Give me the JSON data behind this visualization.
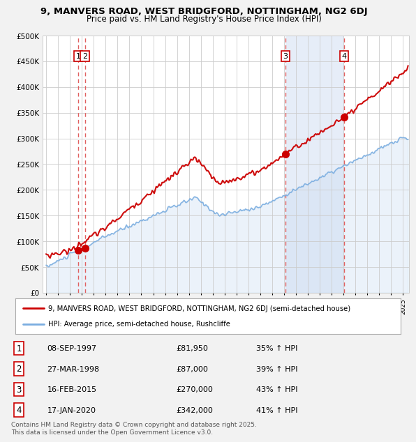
{
  "title": "9, MANVERS ROAD, WEST BRIDGFORD, NOTTINGHAM, NG2 6DJ",
  "subtitle": "Price paid vs. HM Land Registry's House Price Index (HPI)",
  "bg_color": "#f2f2f2",
  "plot_bg_color": "#ffffff",
  "purchases": [
    {
      "date_num": 1997.69,
      "price": 81950,
      "label": "1"
    },
    {
      "date_num": 1998.25,
      "price": 87000,
      "label": "2"
    },
    {
      "date_num": 2015.12,
      "price": 270000,
      "label": "3"
    },
    {
      "date_num": 2020.05,
      "price": 342000,
      "label": "4"
    }
  ],
  "table_entries": [
    [
      "1",
      "08-SEP-1997",
      "£81,950",
      "35% ↑ HPI"
    ],
    [
      "2",
      "27-MAR-1998",
      "£87,000",
      "39% ↑ HPI"
    ],
    [
      "3",
      "16-FEB-2015",
      "£270,000",
      "43% ↑ HPI"
    ],
    [
      "4",
      "17-JAN-2020",
      "£342,000",
      "41% ↑ HPI"
    ]
  ],
  "legend_entries": [
    "9, MANVERS ROAD, WEST BRIDGFORD, NOTTINGHAM, NG2 6DJ (semi-detached house)",
    "HPI: Average price, semi-detached house, Rushcliffe"
  ],
  "footer": "Contains HM Land Registry data © Crown copyright and database right 2025.\nThis data is licensed under the Open Government Licence v3.0.",
  "red_color": "#cc0000",
  "blue_color": "#7aade0",
  "vline_color": "#e06060",
  "ylim": [
    0,
    500000
  ],
  "xlim_start": 1994.7,
  "xlim_end": 2025.5,
  "shade_start": 2015.12,
  "shade_end": 2020.05
}
